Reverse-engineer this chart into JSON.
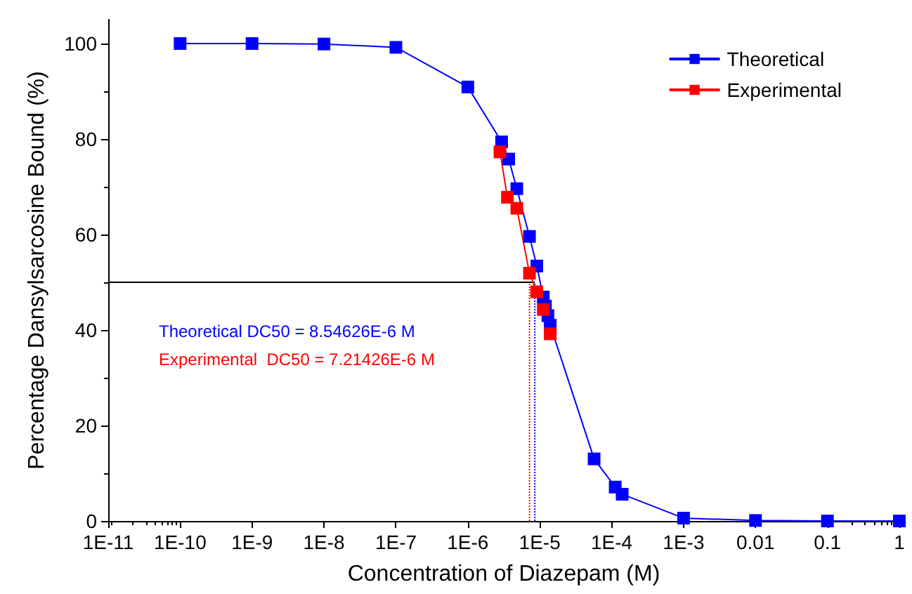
{
  "chart_data": {
    "type": "line",
    "xlabel": "Concentration of Diazepam (M)",
    "ylabel": "Percentage Dansylsarcosine Bound (%)",
    "log": "x",
    "xlim": [
      1e-11,
      1
    ],
    "xticks": [
      {
        "value": 1e-11,
        "label": "1E-11"
      },
      {
        "value": 1e-10,
        "label": "1E-10"
      },
      {
        "value": 1e-09,
        "label": "1E-9"
      },
      {
        "value": 1e-08,
        "label": "1E-8"
      },
      {
        "value": 1e-07,
        "label": "1E-7"
      },
      {
        "value": 1e-06,
        "label": "1E-6"
      },
      {
        "value": 1e-05,
        "label": "1E-5"
      },
      {
        "value": 0.0001,
        "label": "1E-4"
      },
      {
        "value": 0.001,
        "label": "1E-3"
      },
      {
        "value": 0.01,
        "label": "0.01"
      },
      {
        "value": 0.1,
        "label": "0.1"
      },
      1
    ],
    "ylim": [
      0,
      105
    ],
    "yticks": [
      0,
      20,
      40,
      60,
      80,
      100
    ],
    "grid": false,
    "legend": "top right",
    "marker": "square",
    "line_style": "solid",
    "series": [
      {
        "name": "Theoretical",
        "color": "#0000ff",
        "x": [
          1e-10,
          1e-09,
          1e-08,
          1e-07,
          1e-06,
          2.95e-06,
          3.7e-06,
          4.8e-06,
          7.2e-06,
          9.1e-06,
          1.12e-05,
          1.2e-05,
          1.3e-05,
          1.4e-05,
          5.7e-05,
          0.000112,
          0.00014,
          0.001,
          0.01,
          0.1,
          1
        ],
        "values": [
          100,
          100,
          99.9,
          99.2,
          90.9,
          79.4,
          75.8,
          69.6,
          59.6,
          53.4,
          46.9,
          45,
          43,
          41,
          13,
          7.1,
          5.6,
          0.6,
          0.1,
          0,
          0
        ]
      },
      {
        "name": "Experimental",
        "color": "#ff0000",
        "x": [
          2.8e-06,
          3.55e-06,
          4.8e-06,
          7.2e-06,
          9.1e-06,
          1.12e-05,
          1.4e-05
        ],
        "values": [
          77.3,
          67.8,
          65.5,
          51.9,
          48,
          44.3,
          39.2
        ]
      }
    ],
    "ref_lines": [
      {
        "axis": "y",
        "value": 50,
        "color": "#000000",
        "line_style": "solid"
      },
      {
        "axis": "x",
        "value": 8.54626e-06,
        "color": "#0000ff",
        "line_style": "dotted"
      },
      {
        "axis": "x",
        "value": 7.21426e-06,
        "color": "#ff0000",
        "line_style": "dotted"
      }
    ],
    "annotations": [
      "Theoretical DC50 = 8.54626E-6 M",
      "Experimental  DC50 = 7.21426E-6 M"
    ]
  }
}
